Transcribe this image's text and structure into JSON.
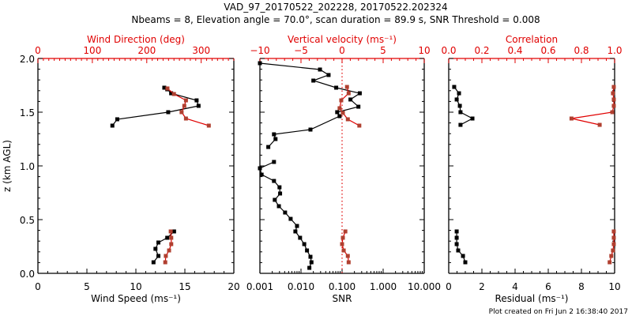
{
  "title_line1": "VAD_97_20170522_202228, 20170522.202324",
  "title_line2": "Nbeams = 8, Elevation angle = 70.0°, scan duration = 89.9 s, SNR Threshold = 0.008",
  "ylabel": "z (km AGL)",
  "footer": "Plot created on Fri Jun  2 16:38:40 2017",
  "colors": {
    "black": "#000000",
    "red": "#e00000",
    "marker_red": "#b04030"
  },
  "chart_data": [
    {
      "type": "line",
      "name": "wind-panel",
      "xlabel": "Wind Speed (ms⁻¹)",
      "xlabel_top": "Wind Direction (deg)",
      "ylabel": "z (km AGL)",
      "xlim": [
        0,
        20
      ],
      "xlim_top": [
        0,
        360
      ],
      "ylim": [
        0,
        2.0
      ],
      "xticks": [
        "0",
        "5",
        "10",
        "15",
        "20"
      ],
      "xticks_top": [
        "0",
        "100",
        "200",
        "300"
      ],
      "yticks": [
        "0.0",
        "0.5",
        "1.0",
        "1.5",
        "2.0"
      ],
      "series": [
        {
          "name": "Wind Speed",
          "axis": "bottom",
          "color": "black",
          "segments": [
            [
              [
                12.9,
                1.728
              ],
              [
                13.2,
                1.713
              ],
              [
                13.6,
                1.676
              ],
              [
                16.2,
                1.61
              ],
              [
                16.4,
                1.559
              ],
              [
                13.3,
                1.5
              ],
              [
                8.1,
                1.434
              ],
              [
                7.6,
                1.375
              ]
            ],
            [
              [
                13.9,
                0.39
              ],
              [
                13.2,
                0.331
              ],
              [
                12.3,
                0.287
              ],
              [
                12.0,
                0.228
              ],
              [
                12.3,
                0.162
              ],
              [
                11.8,
                0.103
              ]
            ]
          ]
        },
        {
          "name": "Wind Direction",
          "axis": "top",
          "color": "red",
          "segments": [
            [
              [
                238,
                1.721
              ],
              [
                250,
                1.669
              ],
              [
                272,
                1.61
              ],
              [
                269,
                1.559
              ],
              [
                264,
                1.5
              ],
              [
                272,
                1.441
              ],
              [
                314,
                1.375
              ]
            ],
            [
              [
                244,
                0.39
              ],
              [
                245,
                0.331
              ],
              [
                245,
                0.272
              ],
              [
                241,
                0.213
              ],
              [
                235,
                0.162
              ],
              [
                234,
                0.103
              ]
            ]
          ]
        }
      ]
    },
    {
      "type": "line",
      "name": "snr-panel",
      "xlabel": "SNR",
      "xlabel_top": "Vertical velocity (ms⁻¹)",
      "xscale": "log",
      "xlim": [
        0.001,
        10.0
      ],
      "xlim_top": [
        -10,
        10
      ],
      "ylim": [
        0,
        2.0
      ],
      "xticks": [
        "0.001",
        "0.010",
        "0.100",
        "1.000",
        "10.000"
      ],
      "xticks_top": [
        "−10",
        "−5",
        "0",
        "5",
        "10"
      ],
      "reference_line": {
        "axis": "top",
        "value": 0,
        "style": "dotted",
        "color": "red"
      },
      "series": [
        {
          "name": "SNR",
          "axis": "bottom",
          "color": "black",
          "segments": [
            [
              [
                0.001,
                1.956
              ],
              [
                0.029,
                1.897
              ],
              [
                0.047,
                1.846
              ],
              [
                0.02,
                1.794
              ],
              [
                0.072,
                1.728
              ],
              [
                0.27,
                1.676
              ],
              [
                0.16,
                1.618
              ],
              [
                0.25,
                1.551
              ],
              [
                0.076,
                1.5
              ],
              [
                0.087,
                1.463
              ],
              [
                0.017,
                1.338
              ],
              [
                0.0022,
                1.294
              ],
              [
                0.0024,
                1.25
              ],
              [
                0.0016,
                1.176
              ]
            ],
            [
              [
                0.0022,
                1.037
              ],
              [
                0.001,
                0.978
              ],
              [
                0.0011,
                0.919
              ],
              [
                0.0022,
                0.86
              ],
              [
                0.003,
                0.801
              ],
              [
                0.0031,
                0.743
              ],
              [
                0.0023,
                0.684
              ],
              [
                0.0029,
                0.625
              ],
              [
                0.0041,
                0.566
              ],
              [
                0.0056,
                0.507
              ],
              [
                0.008,
                0.441
              ],
              [
                0.0073,
                0.39
              ],
              [
                0.0095,
                0.331
              ],
              [
                0.012,
                0.272
              ],
              [
                0.014,
                0.213
              ],
              [
                0.017,
                0.154
              ],
              [
                0.018,
                0.103
              ],
              [
                0.016,
                0.051
              ]
            ]
          ]
        },
        {
          "name": "Vertical velocity",
          "axis": "top",
          "color": "red",
          "segments": [
            [
              [
                0.6,
                1.735
              ],
              [
                0.8,
                1.676
              ],
              [
                -0.1,
                1.61
              ],
              [
                -0.3,
                1.537
              ],
              [
                0.1,
                1.493
              ],
              [
                0.7,
                1.434
              ],
              [
                2.1,
                1.375
              ]
            ],
            [
              [
                0.4,
                0.39
              ],
              [
                0.1,
                0.331
              ],
              [
                0.0,
                0.272
              ],
              [
                0.2,
                0.213
              ],
              [
                0.7,
                0.162
              ],
              [
                0.8,
                0.103
              ]
            ]
          ]
        }
      ]
    },
    {
      "type": "line",
      "name": "residual-panel",
      "xlabel": "Residual (ms⁻¹)",
      "xlabel_top": "Correlation",
      "xlim": [
        0,
        10
      ],
      "xlim_top": [
        0.0,
        1.0
      ],
      "ylim": [
        0,
        2.0
      ],
      "xticks": [
        "0",
        "2",
        "4",
        "6",
        "8",
        "10"
      ],
      "xticks_top": [
        "0.0",
        "0.2",
        "0.4",
        "0.6",
        "0.8",
        "1.0"
      ],
      "series": [
        {
          "name": "Residual",
          "axis": "bottom",
          "color": "black",
          "segments": [
            [
              [
                0.33,
                1.735
              ],
              [
                0.62,
                1.676
              ],
              [
                0.48,
                1.618
              ],
              [
                0.67,
                1.559
              ],
              [
                0.71,
                1.5
              ],
              [
                1.43,
                1.441
              ],
              [
                0.71,
                1.382
              ]
            ],
            [
              [
                0.48,
                0.39
              ],
              [
                0.48,
                0.331
              ],
              [
                0.48,
                0.272
              ],
              [
                0.57,
                0.213
              ],
              [
                0.86,
                0.162
              ],
              [
                1.0,
                0.103
              ]
            ]
          ]
        },
        {
          "name": "Correlation",
          "axis": "top",
          "color": "red",
          "segments": [
            [
              [
                0.995,
                1.735
              ],
              [
                0.99,
                1.676
              ],
              [
                0.995,
                1.618
              ],
              [
                0.995,
                1.559
              ],
              [
                0.986,
                1.5
              ],
              [
                0.74,
                1.441
              ],
              [
                0.91,
                1.382
              ]
            ],
            [
              [
                0.995,
                0.39
              ],
              [
                0.995,
                0.331
              ],
              [
                0.995,
                0.272
              ],
              [
                0.99,
                0.213
              ],
              [
                0.98,
                0.162
              ],
              [
                0.97,
                0.103
              ]
            ]
          ]
        }
      ]
    }
  ]
}
